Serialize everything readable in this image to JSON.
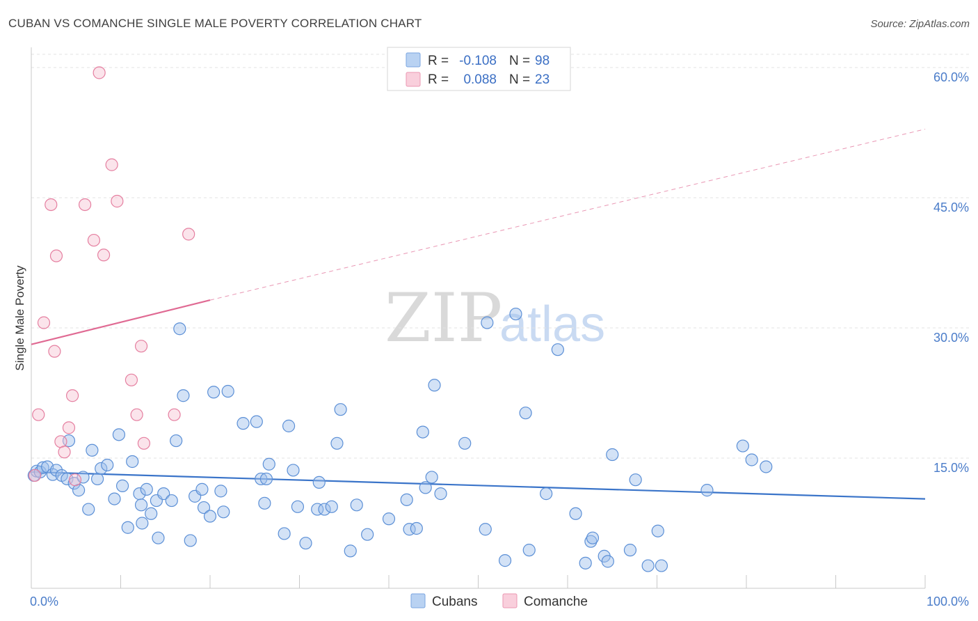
{
  "chart_data": {
    "type": "scatter",
    "title": "CUBAN VS COMANCHE SINGLE MALE POVERTY CORRELATION CHART",
    "source": "Source: ZipAtlas.com",
    "xlabel": "",
    "ylabel": "Single Male Poverty",
    "xlim": [
      0,
      100
    ],
    "ylim": [
      0,
      60
    ],
    "x_tick_labels": [
      "0.0%",
      "100.0%"
    ],
    "y_ticks": [
      15,
      30,
      45,
      60
    ],
    "y_tick_labels": [
      "15.0%",
      "30.0%",
      "45.0%",
      "60.0%"
    ],
    "grid": true,
    "watermark": {
      "left": "ZIP",
      "right": "atlas"
    },
    "legend_top": [
      {
        "r_label": "R =",
        "r_value": "-0.108",
        "n_label": "N =",
        "n_value": "98"
      },
      {
        "r_label": "R =",
        "r_value": "0.088",
        "n_label": "N =",
        "n_value": "23"
      }
    ],
    "series": [
      {
        "name": "Cubans",
        "color": "#9dbfeb",
        "edge": "#5b8fd6",
        "trend": {
          "x": [
            0,
            100
          ],
          "y": [
            13.4,
            10.3
          ],
          "color": "#3a74c9"
        },
        "points": [
          [
            0.3,
            13.0
          ],
          [
            0.6,
            13.5
          ],
          [
            1.0,
            13.4
          ],
          [
            1.3,
            13.9
          ],
          [
            1.8,
            14.0
          ],
          [
            2.4,
            13.1
          ],
          [
            2.8,
            13.6
          ],
          [
            3.4,
            13.0
          ],
          [
            4.0,
            12.6
          ],
          [
            4.2,
            17.0
          ],
          [
            4.8,
            12.1
          ],
          [
            5.3,
            11.3
          ],
          [
            5.8,
            12.8
          ],
          [
            6.4,
            9.1
          ],
          [
            6.8,
            15.9
          ],
          [
            7.4,
            12.6
          ],
          [
            7.8,
            13.8
          ],
          [
            8.5,
            14.2
          ],
          [
            9.3,
            10.3
          ],
          [
            9.8,
            17.7
          ],
          [
            10.2,
            11.8
          ],
          [
            10.8,
            7.0
          ],
          [
            11.3,
            14.6
          ],
          [
            12.1,
            10.9
          ],
          [
            12.4,
            7.5
          ],
          [
            12.9,
            11.4
          ],
          [
            13.4,
            8.6
          ],
          [
            14.0,
            10.1
          ],
          [
            14.2,
            5.8
          ],
          [
            14.8,
            10.9
          ],
          [
            15.7,
            10.1
          ],
          [
            16.2,
            17.0
          ],
          [
            16.6,
            29.9
          ],
          [
            17.0,
            22.2
          ],
          [
            17.8,
            5.5
          ],
          [
            18.3,
            10.6
          ],
          [
            19.1,
            11.4
          ],
          [
            19.3,
            9.3
          ],
          [
            20.0,
            8.3
          ],
          [
            20.4,
            22.6
          ],
          [
            21.2,
            11.2
          ],
          [
            21.5,
            8.8
          ],
          [
            22.0,
            22.7
          ],
          [
            23.7,
            19.0
          ],
          [
            25.2,
            19.2
          ],
          [
            25.7,
            12.6
          ],
          [
            26.1,
            9.8
          ],
          [
            26.6,
            14.3
          ],
          [
            28.3,
            6.3
          ],
          [
            28.8,
            18.7
          ],
          [
            29.3,
            13.6
          ],
          [
            29.8,
            9.4
          ],
          [
            30.7,
            5.2
          ],
          [
            32.0,
            9.1
          ],
          [
            32.2,
            12.2
          ],
          [
            32.8,
            9.1
          ],
          [
            33.6,
            9.4
          ],
          [
            34.2,
            16.7
          ],
          [
            34.6,
            20.6
          ],
          [
            35.7,
            4.3
          ],
          [
            36.4,
            9.6
          ],
          [
            37.6,
            6.2
          ],
          [
            40.0,
            8.0
          ],
          [
            42.0,
            10.2
          ],
          [
            42.3,
            6.8
          ],
          [
            43.1,
            6.9
          ],
          [
            43.8,
            18.0
          ],
          [
            44.1,
            11.6
          ],
          [
            44.8,
            12.8
          ],
          [
            45.1,
            23.4
          ],
          [
            45.8,
            10.9
          ],
          [
            48.5,
            16.7
          ],
          [
            50.8,
            6.8
          ],
          [
            51.0,
            30.6
          ],
          [
            53.0,
            3.2
          ],
          [
            54.2,
            31.6
          ],
          [
            55.3,
            20.2
          ],
          [
            55.7,
            4.4
          ],
          [
            57.6,
            10.9
          ],
          [
            58.9,
            27.5
          ],
          [
            60.9,
            8.6
          ],
          [
            62.0,
            2.9
          ],
          [
            62.6,
            5.4
          ],
          [
            62.8,
            5.8
          ],
          [
            64.1,
            3.7
          ],
          [
            64.5,
            3.1
          ],
          [
            65.0,
            15.4
          ],
          [
            67.0,
            4.4
          ],
          [
            67.6,
            12.5
          ],
          [
            69.0,
            2.6
          ],
          [
            70.1,
            6.6
          ],
          [
            70.5,
            2.6
          ],
          [
            75.6,
            11.3
          ],
          [
            79.6,
            16.4
          ],
          [
            80.6,
            14.8
          ],
          [
            82.2,
            14.0
          ],
          [
            26.3,
            12.6
          ],
          [
            12.3,
            9.6
          ]
        ]
      },
      {
        "name": "Comanche",
        "color": "#f7c3d3",
        "edge": "#e57fa0",
        "trend": {
          "x": [
            0,
            20
          ],
          "y": [
            28.1,
            33.2
          ],
          "color": "#e06a93",
          "dashed_extension": {
            "x": [
              20,
              100
            ],
            "y": [
              33.2,
              52.9
            ]
          }
        },
        "points": [
          [
            0.8,
            20.0
          ],
          [
            1.4,
            30.6
          ],
          [
            2.2,
            44.2
          ],
          [
            2.6,
            27.3
          ],
          [
            2.8,
            38.3
          ],
          [
            3.3,
            16.9
          ],
          [
            3.7,
            15.7
          ],
          [
            4.2,
            18.5
          ],
          [
            4.6,
            22.2
          ],
          [
            4.9,
            12.5
          ],
          [
            6.0,
            44.2
          ],
          [
            7.0,
            40.1
          ],
          [
            7.6,
            59.4
          ],
          [
            8.1,
            38.4
          ],
          [
            9.0,
            48.8
          ],
          [
            9.6,
            44.6
          ],
          [
            11.2,
            24.0
          ],
          [
            11.8,
            20.0
          ],
          [
            12.3,
            27.9
          ],
          [
            12.6,
            16.7
          ],
          [
            16.0,
            20.0
          ],
          [
            17.6,
            40.8
          ],
          [
            0.4,
            13.0
          ]
        ]
      }
    ]
  }
}
